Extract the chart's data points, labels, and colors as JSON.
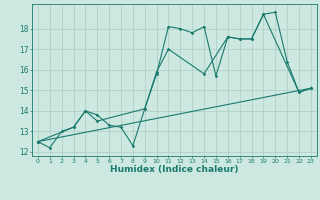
{
  "title": "",
  "xlabel": "Humidex (Indice chaleur)",
  "ylabel": "",
  "bg_color": "#cce8e0",
  "line_color": "#1a7a6e",
  "xlim": [
    -0.5,
    23.5
  ],
  "ylim": [
    11.8,
    19.2
  ],
  "yticks": [
    12,
    13,
    14,
    15,
    16,
    17,
    18
  ],
  "xticks": [
    0,
    1,
    2,
    3,
    4,
    5,
    6,
    7,
    8,
    9,
    10,
    11,
    12,
    13,
    14,
    15,
    16,
    17,
    18,
    19,
    20,
    21,
    22,
    23
  ],
  "series1_x": [
    0,
    1,
    2,
    3,
    4,
    5,
    6,
    7,
    8,
    9,
    10,
    11,
    12,
    13,
    14,
    15,
    16,
    17,
    18,
    19,
    20,
    21,
    22,
    23
  ],
  "series1_y": [
    12.5,
    12.2,
    13.0,
    13.2,
    14.0,
    13.8,
    13.3,
    13.2,
    12.3,
    14.1,
    15.8,
    18.1,
    18.0,
    17.8,
    18.1,
    15.7,
    17.6,
    17.5,
    17.5,
    18.7,
    18.8,
    16.4,
    14.9,
    15.1
  ],
  "series2_x": [
    0,
    3,
    4,
    5,
    9,
    10,
    11,
    14,
    16,
    17,
    18,
    19,
    22,
    23
  ],
  "series2_y": [
    12.5,
    13.2,
    14.0,
    13.5,
    14.1,
    15.9,
    17.0,
    15.8,
    17.6,
    17.5,
    17.5,
    18.7,
    14.9,
    15.1
  ],
  "series3_x": [
    0,
    23
  ],
  "series3_y": [
    12.5,
    15.1
  ],
  "grid_color": "#aaccc4"
}
